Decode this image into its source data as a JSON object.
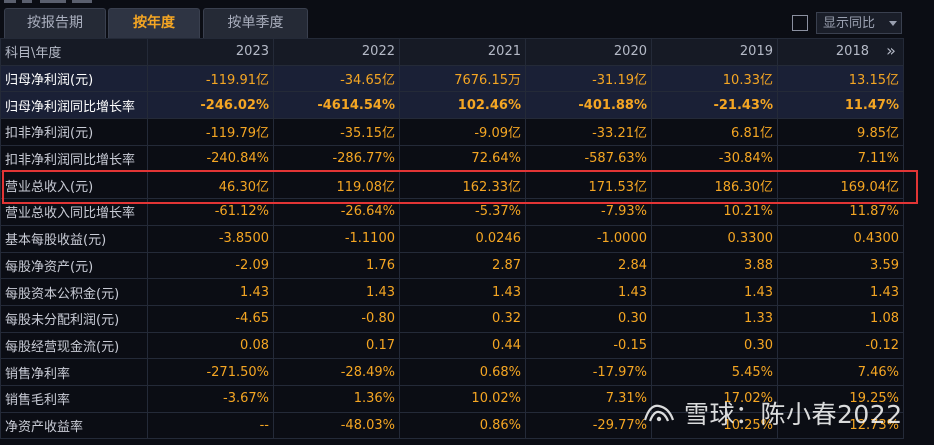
{
  "tabs": [
    "按报告期",
    "按年度",
    "按单季度"
  ],
  "yoy_label": "显示同比",
  "more_glyph": "»",
  "header": [
    "科目\\年度",
    "2023",
    "2022",
    "2021",
    "2020",
    "2019",
    "2018"
  ],
  "rows": [
    {
      "label": "归母净利润(元)",
      "values": [
        "-119.91亿",
        "-34.65亿",
        "7676.15万",
        "-31.19亿",
        "10.33亿",
        "13.15亿"
      ]
    },
    {
      "label": "归母净利润同比增长率",
      "values": [
        "-246.02%",
        "-4614.54%",
        "102.46%",
        "-401.88%",
        "-21.43%",
        "11.47%"
      ]
    },
    {
      "label": "扣非净利润(元)",
      "values": [
        "-119.79亿",
        "-35.15亿",
        "-9.09亿",
        "-33.21亿",
        "6.81亿",
        "9.85亿"
      ]
    },
    {
      "label": "扣非净利润同比增长率",
      "values": [
        "-240.84%",
        "-286.77%",
        "72.64%",
        "-587.63%",
        "-30.84%",
        "7.11%"
      ]
    },
    {
      "label": "营业总收入(元)",
      "values": [
        "46.30亿",
        "119.08亿",
        "162.33亿",
        "171.53亿",
        "186.30亿",
        "169.04亿"
      ]
    },
    {
      "label": "营业总收入同比增长率",
      "values": [
        "-61.12%",
        "-26.64%",
        "-5.37%",
        "-7.93%",
        "10.21%",
        "11.87%"
      ]
    },
    {
      "label": "基本每股收益(元)",
      "values": [
        "-3.8500",
        "-1.1100",
        "0.0246",
        "-1.0000",
        "0.3300",
        "0.4300"
      ]
    },
    {
      "label": "每股净资产(元)",
      "values": [
        "-2.09",
        "1.76",
        "2.87",
        "2.84",
        "3.88",
        "3.59"
      ]
    },
    {
      "label": "每股资本公积金(元)",
      "values": [
        "1.43",
        "1.43",
        "1.43",
        "1.43",
        "1.43",
        "1.43"
      ]
    },
    {
      "label": "每股未分配利润(元)",
      "values": [
        "-4.65",
        "-0.80",
        "0.32",
        "0.30",
        "1.33",
        "1.08"
      ]
    },
    {
      "label": "每股经营现金流(元)",
      "values": [
        "0.08",
        "0.17",
        "0.44",
        "-0.15",
        "0.30",
        "-0.12"
      ]
    },
    {
      "label": "销售净利率",
      "values": [
        "-271.50%",
        "-28.49%",
        "0.68%",
        "-17.97%",
        "5.45%",
        "7.46%"
      ]
    },
    {
      "label": "销售毛利率",
      "values": [
        "-3.67%",
        "1.36%",
        "10.02%",
        "7.31%",
        "17.02%",
        "19.25%"
      ]
    },
    {
      "label": "净资产收益率",
      "values": [
        "--",
        "-48.03%",
        "0.86%",
        "-29.77%",
        "10.25%",
        "12.73%"
      ]
    }
  ],
  "watermark": "雪球：陈小春2022",
  "colors": {
    "value": "#f5a623",
    "highlight_box": "#e23535",
    "background": "#0b0d14"
  }
}
